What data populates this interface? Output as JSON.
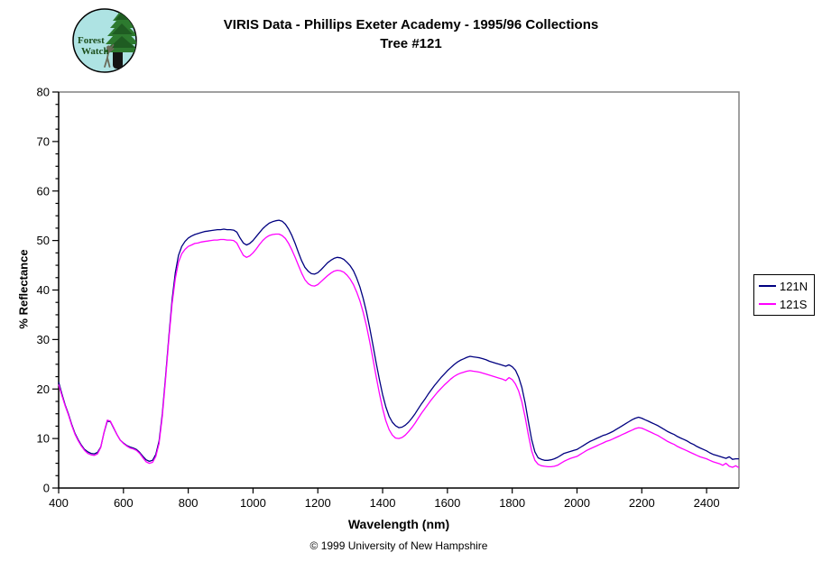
{
  "logo": {
    "line1": "Forest",
    "line2": "Watch"
  },
  "title": "VIRIS Data - Phillips Exeter Academy - 1995/96 Collections",
  "subtitle": "Tree #121",
  "footer": "© 1999 University of New Hampshire",
  "chart_data": {
    "type": "line",
    "title": "VIRIS Data - Phillips Exeter Academy - 1995/96 Collections — Tree #121",
    "xlabel": "Wavelength (nm)",
    "ylabel": "% Reflectance",
    "xlim": [
      400,
      2500
    ],
    "ylim": [
      0,
      80
    ],
    "x_ticks": [
      400,
      600,
      800,
      1000,
      1200,
      1400,
      1600,
      1800,
      2000,
      2200,
      2400
    ],
    "y_ticks": [
      0,
      10,
      20,
      30,
      40,
      50,
      60,
      70,
      80
    ],
    "y_minor_step": 2.5,
    "grid": false,
    "legend_position": "right-outside",
    "border_color": "#808080",
    "axis_color": "#000000",
    "x_start": 400,
    "x_step": 10,
    "series": [
      {
        "name": "121N",
        "color": "#000080",
        "values": [
          21.4,
          19.0,
          16.8,
          15.0,
          12.9,
          11.1,
          9.8,
          8.7,
          7.8,
          7.3,
          7.0,
          6.9,
          7.2,
          8.3,
          11.2,
          13.5,
          13.4,
          12.1,
          10.8,
          9.7,
          9.1,
          8.6,
          8.3,
          8.1,
          7.8,
          7.2,
          6.4,
          5.7,
          5.4,
          5.6,
          6.8,
          9.5,
          15.0,
          22.5,
          30.5,
          38.0,
          43.5,
          47.0,
          48.8,
          49.8,
          50.5,
          50.9,
          51.2,
          51.4,
          51.6,
          51.8,
          51.9,
          52.0,
          52.1,
          52.2,
          52.2,
          52.3,
          52.2,
          52.2,
          52.1,
          51.7,
          50.5,
          49.5,
          49.1,
          49.4,
          50.0,
          50.8,
          51.6,
          52.4,
          53.0,
          53.5,
          53.8,
          54.0,
          54.1,
          53.9,
          53.3,
          52.3,
          51.0,
          49.4,
          47.6,
          45.9,
          44.6,
          43.8,
          43.3,
          43.2,
          43.5,
          44.1,
          44.8,
          45.5,
          46.0,
          46.4,
          46.6,
          46.5,
          46.2,
          45.6,
          44.9,
          43.9,
          42.4,
          40.6,
          38.3,
          35.6,
          32.4,
          28.9,
          25.3,
          21.9,
          18.9,
          16.4,
          14.5,
          13.3,
          12.6,
          12.2,
          12.3,
          12.7,
          13.3,
          14.1,
          15.0,
          16.0,
          17.0,
          17.9,
          18.9,
          19.8,
          20.7,
          21.5,
          22.3,
          23.0,
          23.7,
          24.3,
          24.9,
          25.4,
          25.8,
          26.1,
          26.4,
          26.6,
          26.5,
          26.4,
          26.3,
          26.1,
          25.9,
          25.6,
          25.4,
          25.2,
          25.0,
          24.8,
          24.6,
          24.9,
          24.5,
          23.8,
          22.4,
          20.3,
          17.2,
          13.4,
          9.8,
          7.3,
          6.1,
          5.8,
          5.6,
          5.6,
          5.7,
          5.9,
          6.2,
          6.6,
          7.0,
          7.2,
          7.4,
          7.6,
          7.8,
          8.2,
          8.6,
          9.0,
          9.4,
          9.7,
          10.0,
          10.3,
          10.6,
          10.8,
          11.1,
          11.4,
          11.8,
          12.2,
          12.6,
          13.0,
          13.4,
          13.8,
          14.1,
          14.3,
          14.1,
          13.8,
          13.5,
          13.2,
          12.9,
          12.6,
          12.2,
          11.8,
          11.4,
          11.1,
          10.8,
          10.4,
          10.1,
          9.8,
          9.5,
          9.1,
          8.8,
          8.4,
          8.1,
          7.8,
          7.5,
          7.1,
          6.8,
          6.6,
          6.4,
          6.2,
          6.0,
          6.3,
          5.8,
          5.9,
          5.9
        ]
      },
      {
        "name": "121S",
        "color": "#FF00FF",
        "values": [
          20.9,
          18.7,
          16.6,
          14.8,
          12.7,
          10.9,
          9.6,
          8.5,
          7.6,
          7.0,
          6.7,
          6.6,
          6.9,
          8.2,
          11.3,
          13.7,
          13.5,
          12.2,
          10.8,
          9.7,
          9.0,
          8.5,
          8.1,
          7.9,
          7.6,
          7.0,
          6.1,
          5.3,
          5.0,
          5.2,
          6.4,
          9.0,
          14.5,
          22.0,
          30.0,
          37.2,
          42.3,
          45.6,
          47.3,
          48.2,
          48.8,
          49.1,
          49.4,
          49.5,
          49.7,
          49.8,
          49.9,
          50.0,
          50.1,
          50.1,
          50.2,
          50.2,
          50.1,
          50.1,
          50.0,
          49.5,
          48.2,
          47.0,
          46.6,
          46.9,
          47.5,
          48.3,
          49.2,
          50.0,
          50.6,
          51.0,
          51.2,
          51.3,
          51.3,
          51.0,
          50.4,
          49.4,
          48.1,
          46.6,
          45.0,
          43.4,
          42.1,
          41.3,
          40.9,
          40.8,
          41.1,
          41.7,
          42.3,
          42.9,
          43.4,
          43.8,
          44.0,
          43.9,
          43.6,
          43.0,
          42.2,
          41.1,
          39.6,
          37.8,
          35.5,
          32.8,
          29.6,
          26.1,
          22.5,
          19.1,
          16.1,
          13.6,
          11.8,
          10.7,
          10.1,
          10.0,
          10.2,
          10.7,
          11.4,
          12.2,
          13.1,
          14.1,
          15.1,
          16.0,
          16.9,
          17.8,
          18.6,
          19.4,
          20.1,
          20.8,
          21.4,
          22.0,
          22.5,
          22.9,
          23.2,
          23.4,
          23.6,
          23.7,
          23.6,
          23.5,
          23.4,
          23.2,
          23.0,
          22.8,
          22.6,
          22.4,
          22.2,
          22.0,
          21.7,
          22.3,
          21.9,
          21.0,
          19.6,
          17.4,
          14.3,
          10.7,
          7.5,
          5.6,
          4.8,
          4.5,
          4.4,
          4.3,
          4.3,
          4.4,
          4.6,
          5.0,
          5.4,
          5.7,
          6.0,
          6.2,
          6.4,
          6.8,
          7.2,
          7.6,
          7.9,
          8.2,
          8.5,
          8.8,
          9.1,
          9.4,
          9.6,
          9.9,
          10.2,
          10.5,
          10.8,
          11.1,
          11.4,
          11.7,
          12.0,
          12.2,
          12.1,
          11.8,
          11.5,
          11.2,
          10.9,
          10.6,
          10.2,
          9.8,
          9.4,
          9.1,
          8.8,
          8.4,
          8.1,
          7.8,
          7.5,
          7.2,
          6.9,
          6.6,
          6.3,
          6.1,
          5.9,
          5.6,
          5.3,
          5.1,
          4.9,
          4.6,
          5.0,
          4.4,
          4.2,
          4.5,
          4.1
        ]
      }
    ]
  }
}
